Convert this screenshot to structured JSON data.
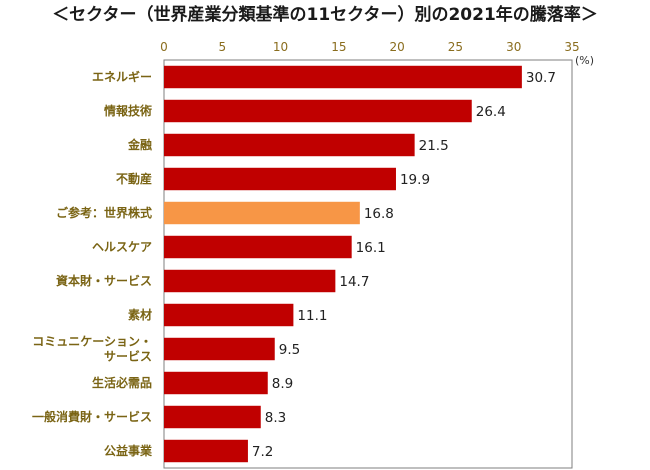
{
  "chart_data": {
    "type": "bar",
    "orientation": "horizontal",
    "title": "＜セクター（世界産業分類基準の11セクター）別の2021年の騰落率＞",
    "unit": "(%)",
    "xlim": [
      0,
      35
    ],
    "xticks": [
      0,
      5,
      10,
      15,
      20,
      25,
      30,
      35
    ],
    "grid": false,
    "legend": "none",
    "categories": [
      [
        "エネルギー"
      ],
      [
        "情報技術"
      ],
      [
        "金融"
      ],
      [
        "不動産"
      ],
      [
        "ご参考：世界株式"
      ],
      [
        "ヘルスケア"
      ],
      [
        "資本財・サービス"
      ],
      [
        "素材"
      ],
      [
        "コミュニケーション・",
        "サービス"
      ],
      [
        "生活必需品"
      ],
      [
        "一般消費財・サービス"
      ],
      [
        "公益事業"
      ]
    ],
    "values": [
      30.7,
      26.4,
      21.5,
      19.9,
      16.8,
      16.1,
      14.7,
      11.1,
      9.5,
      8.9,
      8.3,
      7.2
    ],
    "value_labels": [
      "30.7",
      "26.4",
      "21.5",
      "19.9",
      "16.8",
      "16.1",
      "14.7",
      "11.1",
      "9.5",
      "8.9",
      "8.3",
      "7.2"
    ],
    "highlight_index": 4,
    "colors": {
      "bar": "#c00000",
      "highlight": "#f79646",
      "axis_text": "#8a6d1e",
      "category_text": "#7a6414",
      "frame": "#7f7f7f"
    }
  }
}
